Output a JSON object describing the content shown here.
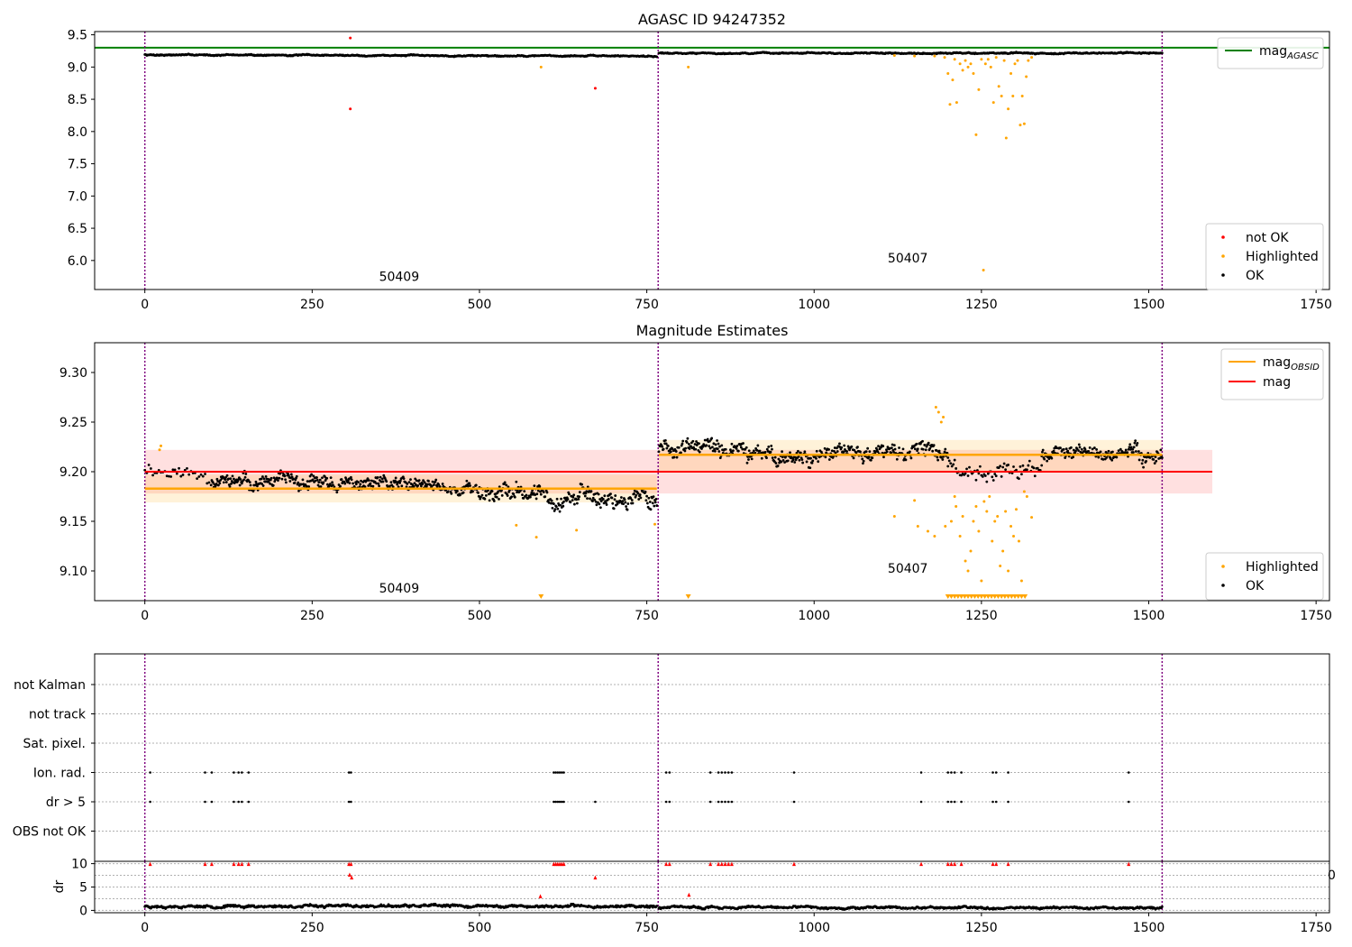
{
  "chart_data": [
    {
      "type": "scatter",
      "title": "AGASC ID 94247352",
      "xlim": [
        -75,
        1770
      ],
      "ylim": [
        5.55,
        9.55
      ],
      "xticks": [
        0,
        250,
        500,
        750,
        1000,
        1250,
        1500,
        1750
      ],
      "yticks": [
        6.0,
        6.5,
        7.0,
        7.5,
        8.0,
        8.5,
        9.0,
        9.5
      ],
      "vlines": [
        0,
        767,
        1520
      ],
      "hline": {
        "value": 9.3,
        "color": "#008000",
        "x_range": [
          -75,
          1770
        ]
      },
      "obs_labels": [
        {
          "text": "50409",
          "x": 380,
          "y": 5.68
        },
        {
          "text": "50407",
          "x": 1140,
          "y": 5.97
        }
      ],
      "legend_lines": [
        {
          "label": "mag",
          "sub": "AGASC",
          "color": "#008000"
        }
      ],
      "legend_points": [
        {
          "label": "not OK",
          "color": "#ff0000"
        },
        {
          "label": "Highlighted",
          "color": "#ffa500"
        },
        {
          "label": "OK",
          "color": "#000000"
        }
      ],
      "ok_segments": [
        {
          "x0": 0,
          "x1": 765,
          "y0": 9.19,
          "y1": 9.17,
          "noise": 0.012,
          "step": 1
        },
        {
          "x0": 768,
          "x1": 1520,
          "y0": 9.215,
          "y1": 9.215,
          "noise": 0.012,
          "step": 1
        }
      ],
      "highlighted_points": [
        [
          592,
          9.0
        ],
        [
          812,
          9.0
        ],
        [
          1120,
          9.18
        ],
        [
          1150,
          9.17
        ],
        [
          1180,
          9.17
        ],
        [
          1195,
          9.15
        ],
        [
          1200,
          8.9
        ],
        [
          1203,
          8.42
        ],
        [
          1207,
          8.8
        ],
        [
          1210,
          9.12
        ],
        [
          1213,
          8.45
        ],
        [
          1218,
          9.05
        ],
        [
          1222,
          8.95
        ],
        [
          1226,
          9.1
        ],
        [
          1230,
          9.0
        ],
        [
          1234,
          9.05
        ],
        [
          1238,
          8.9
        ],
        [
          1242,
          7.95
        ],
        [
          1246,
          8.65
        ],
        [
          1250,
          9.12
        ],
        [
          1253,
          5.85
        ],
        [
          1256,
          9.05
        ],
        [
          1260,
          9.12
        ],
        [
          1264,
          9.0
        ],
        [
          1268,
          8.45
        ],
        [
          1272,
          9.15
        ],
        [
          1276,
          8.7
        ],
        [
          1280,
          8.55
        ],
        [
          1284,
          9.1
        ],
        [
          1287,
          7.9
        ],
        [
          1290,
          8.35
        ],
        [
          1294,
          8.9
        ],
        [
          1297,
          8.55
        ],
        [
          1300,
          9.05
        ],
        [
          1304,
          9.1
        ],
        [
          1308,
          8.1
        ],
        [
          1311,
          8.55
        ],
        [
          1314,
          8.12
        ],
        [
          1317,
          8.85
        ],
        [
          1320,
          9.1
        ],
        [
          1325,
          9.15
        ]
      ],
      "notok_points": [
        [
          307,
          9.45
        ],
        [
          307,
          8.35
        ],
        [
          673,
          8.67
        ]
      ]
    },
    {
      "type": "scatter",
      "title": "Magnitude Estimates",
      "xlim": [
        -75,
        1770
      ],
      "ylim": [
        9.07,
        9.33
      ],
      "xticks": [
        0,
        250,
        500,
        750,
        1000,
        1250,
        1500,
        1750
      ],
      "yticks": [
        9.1,
        9.15,
        9.2,
        9.25,
        9.3
      ],
      "vlines": [
        0,
        767,
        1520
      ],
      "mag_band": {
        "value": 9.2,
        "low": 9.178,
        "high": 9.222,
        "x_range": [
          0,
          1595
        ],
        "color": "#ff0000"
      },
      "obsid_mags": [
        {
          "x0": 0,
          "x1": 765,
          "value": 9.183,
          "low": 9.169,
          "high": 9.197
        },
        {
          "x0": 768,
          "x1": 1520,
          "value": 9.217,
          "low": 9.2,
          "high": 9.232
        }
      ],
      "obs_labels": [
        {
          "text": "50409",
          "x": 380,
          "y": 9.078
        },
        {
          "text": "50407",
          "x": 1140,
          "y": 9.098
        }
      ],
      "legend_lines": [
        {
          "label": "mag",
          "sub": "OBSID",
          "color": "#ffa500"
        },
        {
          "label": "mag",
          "sub": "",
          "color": "#ff0000"
        }
      ],
      "legend_points": [
        {
          "label": "Highlighted",
          "color": "#ffa500"
        },
        {
          "label": "OK",
          "color": "#000000"
        }
      ],
      "ok_segments": [
        {
          "x0": 0,
          "x1": 100,
          "y0": 9.205,
          "y1": 9.195,
          "noise": 0.009,
          "step": 3
        },
        {
          "x0": 100,
          "x1": 500,
          "y0": 9.19,
          "y1": 9.183,
          "noise": 0.009,
          "step": 1
        },
        {
          "x0": 500,
          "x1": 765,
          "y0": 9.18,
          "y1": 9.172,
          "noise": 0.011,
          "step": 1
        },
        {
          "x0": 768,
          "x1": 900,
          "y0": 9.225,
          "y1": 9.22,
          "noise": 0.01,
          "step": 1
        },
        {
          "x0": 900,
          "x1": 1200,
          "y0": 9.215,
          "y1": 9.22,
          "noise": 0.01,
          "step": 1
        },
        {
          "x0": 1200,
          "x1": 1340,
          "y0": 9.205,
          "y1": 9.2,
          "noise": 0.012,
          "step": 2
        },
        {
          "x0": 1340,
          "x1": 1520,
          "y0": 9.22,
          "y1": 9.218,
          "noise": 0.01,
          "step": 1
        }
      ],
      "highlighted_points": [
        [
          22,
          9.222
        ],
        [
          24,
          9.226
        ],
        [
          555,
          9.146
        ],
        [
          585,
          9.134
        ],
        [
          645,
          9.141
        ],
        [
          762,
          9.147
        ],
        [
          1120,
          9.155
        ],
        [
          1150,
          9.171
        ],
        [
          1155,
          9.145
        ],
        [
          1170,
          9.14
        ],
        [
          1180,
          9.135
        ],
        [
          1182,
          9.265
        ],
        [
          1186,
          9.26
        ],
        [
          1190,
          9.25
        ],
        [
          1193,
          9.255
        ],
        [
          1196,
          9.145
        ],
        [
          1205,
          9.15
        ],
        [
          1210,
          9.175
        ],
        [
          1212,
          9.165
        ],
        [
          1218,
          9.135
        ],
        [
          1222,
          9.155
        ],
        [
          1226,
          9.11
        ],
        [
          1230,
          9.1
        ],
        [
          1234,
          9.12
        ],
        [
          1238,
          9.15
        ],
        [
          1242,
          9.165
        ],
        [
          1246,
          9.14
        ],
        [
          1250,
          9.09
        ],
        [
          1254,
          9.17
        ],
        [
          1258,
          9.16
        ],
        [
          1262,
          9.175
        ],
        [
          1266,
          9.13
        ],
        [
          1270,
          9.15
        ],
        [
          1274,
          9.155
        ],
        [
          1278,
          9.105
        ],
        [
          1282,
          9.12
        ],
        [
          1286,
          9.16
        ],
        [
          1290,
          9.1
        ],
        [
          1294,
          9.145
        ],
        [
          1298,
          9.135
        ],
        [
          1302,
          9.162
        ],
        [
          1306,
          9.13
        ],
        [
          1310,
          9.09
        ],
        [
          1314,
          9.18
        ],
        [
          1318,
          9.175
        ],
        [
          1325,
          9.154
        ]
      ],
      "offscale_points": [
        592,
        812,
        1200,
        1205,
        1210,
        1215,
        1220,
        1225,
        1230,
        1235,
        1240,
        1245,
        1250,
        1255,
        1260,
        1265,
        1270,
        1275,
        1280,
        1285,
        1290,
        1295,
        1300,
        1305,
        1310,
        1315
      ]
    },
    {
      "type": "scatter",
      "title": "",
      "xlim": [
        -75,
        1770
      ],
      "categories": [
        "not Kalman",
        "not track",
        "Sat. pixel.",
        "Ion. rad.",
        "dr > 5",
        "OBS not OK"
      ],
      "vlines": [
        0,
        767,
        1520
      ],
      "flag_points": {
        "Ion. rad.": [
          8,
          90,
          100,
          133,
          140,
          145,
          155,
          305,
          308,
          611,
          614,
          617,
          620,
          623,
          626,
          779,
          784,
          845,
          857,
          862,
          867,
          872,
          877,
          970,
          1160,
          1200,
          1205,
          1210,
          1220,
          1267,
          1272,
          1290,
          1470
        ],
        "dr > 5": [
          8,
          90,
          100,
          133,
          140,
          145,
          155,
          305,
          308,
          611,
          614,
          617,
          620,
          623,
          626,
          673,
          779,
          784,
          845,
          857,
          862,
          867,
          872,
          877,
          970,
          1160,
          1200,
          1205,
          1210,
          1220,
          1267,
          1272,
          1290,
          1470
        ]
      }
    },
    {
      "type": "scatter",
      "title": "",
      "ylabel": "dr",
      "xlim": [
        -75,
        1770
      ],
      "ylim": [
        -0.5,
        10.5
      ],
      "xticks": [
        0,
        250,
        500,
        750,
        1000,
        1250,
        1500,
        1750
      ],
      "yticks": [
        0,
        5,
        10
      ],
      "vlines": [
        0,
        767,
        1520
      ],
      "ok_segments": [
        {
          "x0": 0,
          "x1": 765,
          "y0": 0.9,
          "y1": 0.9,
          "noise": 0.35,
          "step": 1
        },
        {
          "x0": 768,
          "x1": 1520,
          "y0": 0.6,
          "y1": 0.6,
          "noise": 0.3,
          "step": 1
        }
      ],
      "notok_points": [
        [
          8,
          9.9
        ],
        [
          90,
          9.9
        ],
        [
          100,
          9.9
        ],
        [
          133,
          9.9
        ],
        [
          140,
          9.9
        ],
        [
          145,
          9.9
        ],
        [
          155,
          9.9
        ],
        [
          305,
          9.9
        ],
        [
          308,
          9.9
        ],
        [
          306,
          7.6
        ],
        [
          309,
          7.0
        ],
        [
          591,
          3.0
        ],
        [
          611,
          9.9
        ],
        [
          614,
          9.9
        ],
        [
          617,
          9.9
        ],
        [
          620,
          9.9
        ],
        [
          623,
          9.9
        ],
        [
          626,
          9.9
        ],
        [
          673,
          7.0
        ],
        [
          779,
          9.9
        ],
        [
          784,
          9.9
        ],
        [
          813,
          3.3
        ],
        [
          845,
          9.9
        ],
        [
          857,
          9.9
        ],
        [
          862,
          9.9
        ],
        [
          867,
          9.9
        ],
        [
          872,
          9.9
        ],
        [
          877,
          9.9
        ],
        [
          970,
          9.9
        ],
        [
          1160,
          9.9
        ],
        [
          1200,
          9.9
        ],
        [
          1205,
          9.9
        ],
        [
          1210,
          9.9
        ],
        [
          1220,
          9.9
        ],
        [
          1267,
          9.9
        ],
        [
          1272,
          9.9
        ],
        [
          1290,
          9.9
        ],
        [
          1470,
          9.9
        ]
      ],
      "stray_label": "0"
    }
  ]
}
